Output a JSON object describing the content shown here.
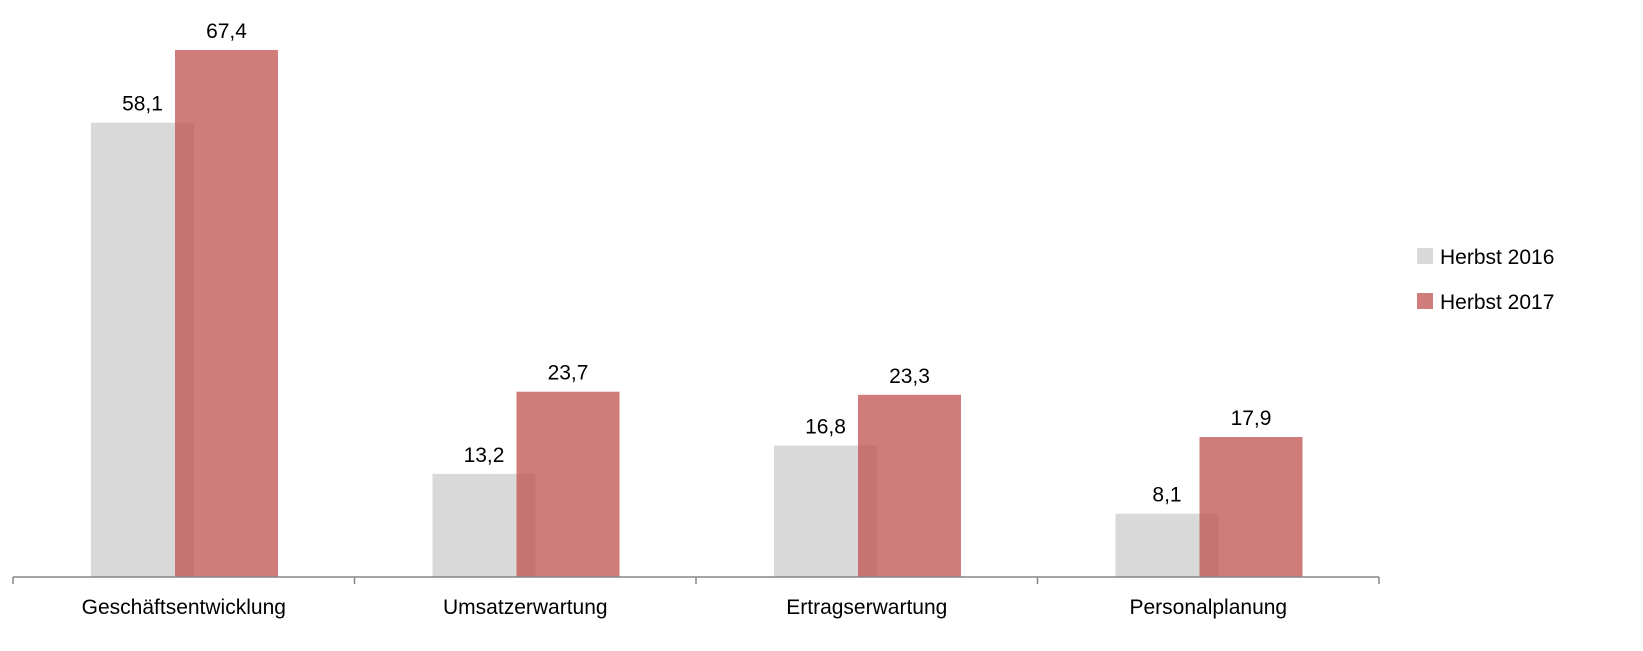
{
  "chart_data": {
    "type": "bar",
    "categories": [
      "Geschäftsentwicklung",
      "Umsatzerwartung",
      "Ertragserwartung",
      "Personalplanung"
    ],
    "series": [
      {
        "name": "Herbst 2016",
        "values": [
          58.1,
          13.2,
          16.8,
          8.1
        ],
        "labels": [
          "58,1",
          "13,2",
          "16,8",
          "8,1"
        ],
        "color": "#d9d9d9"
      },
      {
        "name": "Herbst 2017",
        "values": [
          67.4,
          23.7,
          23.3,
          17.9
        ],
        "labels": [
          "67,4",
          "23,7",
          "23,3",
          "17,9"
        ],
        "color": "#c0504d"
      }
    ],
    "ylim": [
      0,
      72
    ],
    "grid": false,
    "legend_position": "right",
    "title": "",
    "xlabel": "",
    "ylabel": ""
  }
}
